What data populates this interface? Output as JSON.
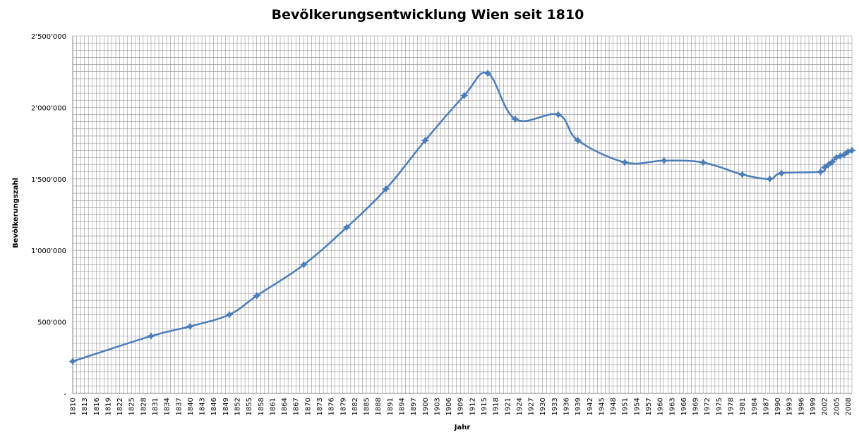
{
  "chart_data": {
    "type": "line",
    "title": "Bevölkerungsentwicklung Wien seit 1810",
    "xlabel": "Jahr",
    "ylabel": "Bevölkerungszahl",
    "xlim": [
      1810,
      2009
    ],
    "ylim": [
      0,
      2500000
    ],
    "x_tick_labels": [
      "1810",
      "1813",
      "1816",
      "1819",
      "1822",
      "1825",
      "1828",
      "1831",
      "1834",
      "1837",
      "1840",
      "1843",
      "1846",
      "1849",
      "1852",
      "1855",
      "1858",
      "1861",
      "1864",
      "1867",
      "1870",
      "1873",
      "1876",
      "1879",
      "1882",
      "1885",
      "1888",
      "1891",
      "1894",
      "1897",
      "1900",
      "1903",
      "1906",
      "1909",
      "1912",
      "1915",
      "1918",
      "1921",
      "1924",
      "1927",
      "1930",
      "1933",
      "1936",
      "1939",
      "1942",
      "1945",
      "1948",
      "1951",
      "1954",
      "1957",
      "1960",
      "1963",
      "1966",
      "1969",
      "1972",
      "1975",
      "1978",
      "1981",
      "1984",
      "1987",
      "1990",
      "1993",
      "1996",
      "1999",
      "2002",
      "2005",
      "2008"
    ],
    "y_ticks": [
      {
        "value": 0,
        "label": "-"
      },
      {
        "value": 500000,
        "label": "500'000"
      },
      {
        "value": 1000000,
        "label": "1'000'000"
      },
      {
        "value": 1500000,
        "label": "1'500'000"
      },
      {
        "value": 2000000,
        "label": "2'000'000"
      },
      {
        "value": 2500000,
        "label": "2'500'000"
      }
    ],
    "grid": true,
    "series": [
      {
        "color": "#4a7ebb",
        "points": [
          {
            "x": 1810,
            "y": 224000
          },
          {
            "x": 1830,
            "y": 401000
          },
          {
            "x": 1840,
            "y": 469000
          },
          {
            "x": 1850,
            "y": 551000
          },
          {
            "x": 1857,
            "y": 683000
          },
          {
            "x": 1869,
            "y": 900000
          },
          {
            "x": 1880,
            "y": 1162000
          },
          {
            "x": 1890,
            "y": 1430000
          },
          {
            "x": 1900,
            "y": 1769000
          },
          {
            "x": 1910,
            "y": 2083000
          },
          {
            "x": 1916,
            "y": 2239000
          },
          {
            "x": 1923,
            "y": 1919000
          },
          {
            "x": 1934,
            "y": 1950000
          },
          {
            "x": 1939,
            "y": 1770000
          },
          {
            "x": 1951,
            "y": 1616000
          },
          {
            "x": 1961,
            "y": 1628000
          },
          {
            "x": 1971,
            "y": 1615000
          },
          {
            "x": 1981,
            "y": 1531000
          },
          {
            "x": 1988,
            "y": 1500000
          },
          {
            "x": 1991,
            "y": 1540000
          },
          {
            "x": 2001,
            "y": 1550000
          },
          {
            "x": 2002,
            "y": 1580000
          },
          {
            "x": 2003,
            "y": 1600000
          },
          {
            "x": 2004,
            "y": 1620000
          },
          {
            "x": 2005,
            "y": 1650000
          },
          {
            "x": 2006,
            "y": 1660000
          },
          {
            "x": 2007,
            "y": 1670000
          },
          {
            "x": 2008,
            "y": 1690000
          },
          {
            "x": 2009,
            "y": 1700000
          }
        ]
      }
    ]
  }
}
